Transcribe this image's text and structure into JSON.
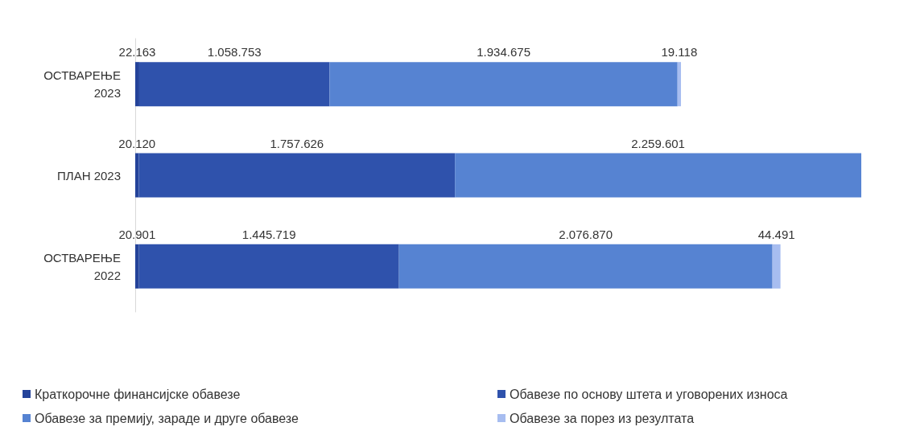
{
  "chart_data": {
    "type": "bar",
    "orientation": "horizontal",
    "stacked": true,
    "categories": [
      "ОСТВАРЕЊЕ\n2023",
      "ПЛАН 2023",
      "ОСТВАРЕЊЕ\n2022"
    ],
    "series": [
      {
        "name": "Краткорочне финансијске обавезе",
        "color": "#24439a",
        "values": [
          22163,
          20120,
          20901
        ],
        "value_labels": [
          "22.163",
          "20.120",
          "20.901"
        ]
      },
      {
        "name": "Обавезе по основу штета и уговорених износа",
        "color": "#2f52ac",
        "values": [
          1058753,
          1757626,
          1445719
        ],
        "value_labels": [
          "1.058.753",
          "1.757.626",
          "1.445.719"
        ]
      },
      {
        "name": "Обавезе за премију, зараде и друге обавезе",
        "color": "#5683d2",
        "values": [
          1934675,
          2259601,
          2076870
        ],
        "value_labels": [
          "1.934.675",
          "2.259.601",
          "2.076.870"
        ]
      },
      {
        "name": "Обавезе за порез из резултата",
        "color": "#a7bdf0",
        "values": [
          19118,
          null,
          44491
        ],
        "value_labels": [
          "19.118",
          null,
          "44.491"
        ]
      }
    ],
    "legend": "bottom"
  }
}
